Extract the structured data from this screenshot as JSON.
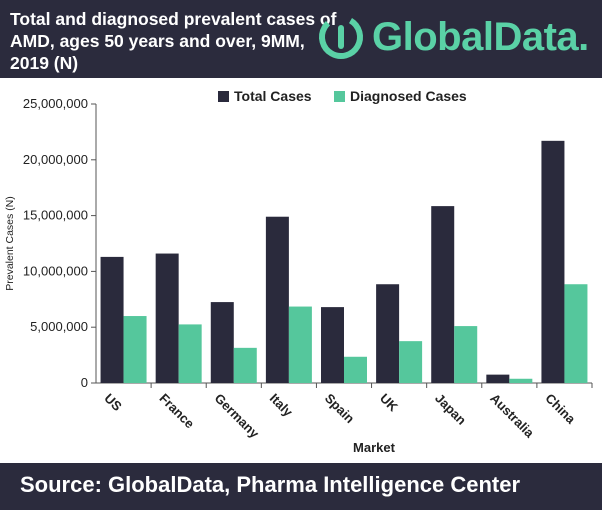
{
  "header": {
    "title": "Total and diagnosed prevalent cases of AMD, ages 50 years and over, 9MM, 2019 (N)",
    "brand": "GlobalData."
  },
  "footer": {
    "source": "Source: GlobalData, Pharma Intelligence Center"
  },
  "colors": {
    "total": "#2a2a3c",
    "diagnosed": "#55c79c",
    "header_bg": "#2b2b3d",
    "brand": "#5ad1a6"
  },
  "chart_data": {
    "type": "bar",
    "title": "Total and diagnosed prevalent cases of AMD, ages 50 years and over, 9MM, 2019 (N)",
    "xlabel": "Market",
    "ylabel": "Prevalent Cases (N)",
    "ylim": [
      0,
      25000000
    ],
    "yticks": [
      "0",
      "5,000,000",
      "10,000,000",
      "15,000,000",
      "20,000,000",
      "25,000,000"
    ],
    "grid": false,
    "legend": "top",
    "categories": [
      "US",
      "France",
      "Germany",
      "Italy",
      "Spain",
      "UK",
      "Japan",
      "Australia",
      "China"
    ],
    "series": [
      {
        "name": "Total Cases",
        "values": [
          11300000,
          11600000,
          7250000,
          14900000,
          6800000,
          8850000,
          15850000,
          750000,
          21700000
        ]
      },
      {
        "name": "Diagnosed Cases",
        "values": [
          6000000,
          5250000,
          3150000,
          6850000,
          2350000,
          3750000,
          5100000,
          380000,
          8850000
        ]
      }
    ]
  }
}
